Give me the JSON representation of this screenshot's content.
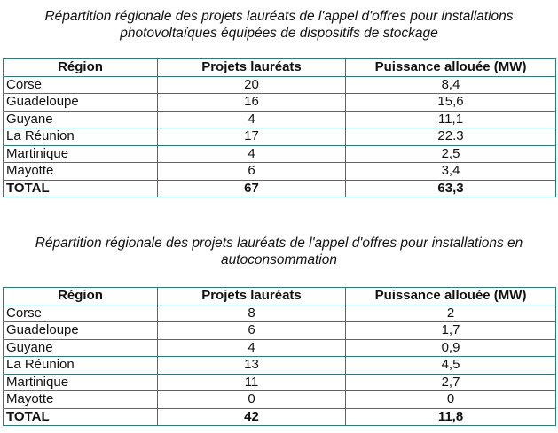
{
  "theme": {
    "border_color": "#2e7b78",
    "text_color": "#111111",
    "background": "#ffffff"
  },
  "tables": [
    {
      "caption_line1": "Répartition régionale des projets lauréats de l'appel d'offres pour installations",
      "caption_line2": "photovoltaïques équipées de dispositifs de stockage",
      "headers": [
        "Région",
        "Projets lauréats",
        "Puissance allouée (MW)"
      ],
      "rows": [
        {
          "region": "Corse",
          "projets": "20",
          "puissance": "8,4"
        },
        {
          "region": "Guadeloupe",
          "projets": "16",
          "puissance": "15,6"
        },
        {
          "region": "Guyane",
          "projets": "4",
          "puissance": "11,1"
        },
        {
          "region": "La Réunion",
          "projets": "17",
          "puissance": "22.3"
        },
        {
          "region": "Martinique",
          "projets": "4",
          "puissance": "2,5"
        },
        {
          "region": "Mayotte",
          "projets": "6",
          "puissance": "3,4"
        }
      ],
      "total": {
        "region": "TOTAL",
        "projets": "67",
        "puissance": "63,3"
      }
    },
    {
      "caption_line1": "Répartition régionale des projets lauréats de l'appel d'offres pour installations en",
      "caption_line2": "autoconsommation",
      "headers": [
        "Région",
        "Projets lauréats",
        "Puissance allouée (MW)"
      ],
      "rows": [
        {
          "region": "Corse",
          "projets": "8",
          "puissance": "2"
        },
        {
          "region": "Guadeloupe",
          "projets": "6",
          "puissance": "1,7"
        },
        {
          "region": "Guyane",
          "projets": "4",
          "puissance": "0,9"
        },
        {
          "region": "La Réunion",
          "projets": "13",
          "puissance": "4,5"
        },
        {
          "region": "Martinique",
          "projets": "11",
          "puissance": "2,7"
        },
        {
          "region": "Mayotte",
          "projets": "0",
          "puissance": "0"
        }
      ],
      "total": {
        "region": "TOTAL",
        "projets": "42",
        "puissance": "11,8"
      }
    }
  ]
}
